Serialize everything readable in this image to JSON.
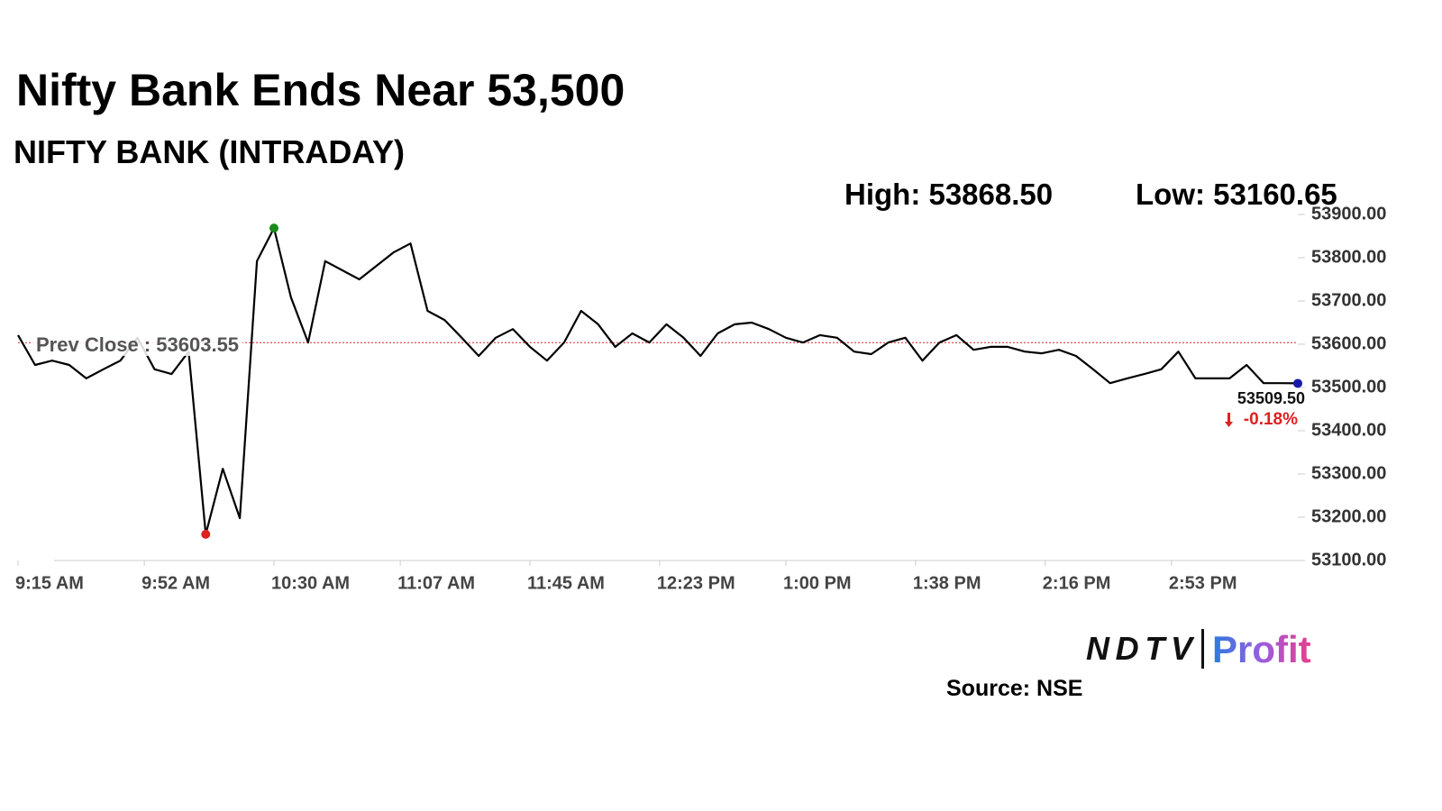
{
  "chart_data": {
    "type": "line",
    "title": "Nifty Bank Ends Near 53,500",
    "subtitle": "NIFTY BANK (INTRADAY)",
    "high": {
      "value": 53868.5,
      "label": "High: 53868.50",
      "color": "#1a8a1a"
    },
    "low": {
      "value": 53160.65,
      "label": "Low: 53160.65",
      "color": "#e02020"
    },
    "prev_close": {
      "value": 53603.55,
      "label": "Prev Close : 53603.55",
      "color": "#d62728"
    },
    "close": {
      "value": 53509.5,
      "label": "53509.50",
      "color": "#1a1aa8"
    },
    "change": {
      "value": -0.18,
      "label": "-0.18%",
      "color": "#e02020"
    },
    "color": "#000000",
    "x": [
      "9:15 AM",
      "9:20 AM",
      "9:25 AM",
      "9:30 AM",
      "9:35 AM",
      "9:40 AM",
      "9:45 AM",
      "9:50 AM",
      "9:55 AM",
      "10:00 AM",
      "10:05 AM",
      "10:10 AM",
      "10:15 AM",
      "10:20 AM",
      "10:25 AM",
      "10:30 AM",
      "10:35 AM",
      "10:40 AM",
      "10:45 AM",
      "10:50 AM",
      "10:55 AM",
      "11:00 AM",
      "11:05 AM",
      "11:10 AM",
      "11:15 AM",
      "11:20 AM",
      "11:25 AM",
      "11:30 AM",
      "11:35 AM",
      "11:40 AM",
      "11:45 AM",
      "11:50 AM",
      "11:55 AM",
      "12:00 PM",
      "12:05 PM",
      "12:10 PM",
      "12:15 PM",
      "12:20 PM",
      "12:25 PM",
      "12:30 PM",
      "12:35 PM",
      "12:40 PM",
      "12:45 PM",
      "12:50 PM",
      "12:55 PM",
      "1:00 PM",
      "1:05 PM",
      "1:10 PM",
      "1:15 PM",
      "1:20 PM",
      "1:25 PM",
      "1:30 PM",
      "1:35 PM",
      "1:40 PM",
      "1:45 PM",
      "1:50 PM",
      "1:55 PM",
      "2:00 PM",
      "2:05 PM",
      "2:10 PM",
      "2:15 PM",
      "2:20 PM",
      "2:25 PM",
      "2:30 PM",
      "2:35 PM",
      "2:40 PM",
      "2:45 PM",
      "2:50 PM",
      "2:55 PM",
      "3:00 PM",
      "3:05 PM",
      "3:10 PM",
      "3:15 PM",
      "3:20 PM",
      "3:25 PM",
      "3:30 PM"
    ],
    "values": [
      53621,
      53552,
      53562,
      53552,
      53521,
      53542,
      53562,
      53615,
      53542,
      53531,
      53583,
      53160.65,
      53312,
      53198,
      53792,
      53868.5,
      53708,
      53604,
      53792,
      53771,
      53750,
      53781,
      53812,
      53833,
      53677,
      53656,
      53615,
      53573,
      53615,
      53635,
      53594,
      53562,
      53604,
      53677,
      53646,
      53594,
      53625,
      53604,
      53646,
      53615,
      53573,
      53625,
      53646,
      53650,
      53635,
      53615,
      53604,
      53621,
      53615,
      53583,
      53577,
      53604,
      53615,
      53562,
      53604,
      53621,
      53587,
      53594,
      53594,
      53583,
      53579,
      53587,
      53573,
      53542,
      53510,
      53521,
      53531,
      53542,
      53583,
      53521,
      53521,
      53521,
      53552,
      53510,
      53510,
      53509.5
    ],
    "xticks": [
      "9:15 AM",
      "9:52 AM",
      "10:30 AM",
      "11:07 AM",
      "11:45 AM",
      "12:23 PM",
      "1:00 PM",
      "1:38 PM",
      "2:16 PM",
      "2:53 PM"
    ],
    "ylim": [
      53100,
      53900
    ],
    "yticks": [
      {
        "value": 53100,
        "label": "53100.00"
      },
      {
        "value": 53200,
        "label": "53200.00"
      },
      {
        "value": 53300,
        "label": "53300.00"
      },
      {
        "value": 53400,
        "label": "53400.00"
      },
      {
        "value": 53500,
        "label": "53500.00"
      },
      {
        "value": 53600,
        "label": "53600.00"
      },
      {
        "value": 53700,
        "label": "53700.00"
      },
      {
        "value": 53800,
        "label": "53800.00"
      },
      {
        "value": 53900,
        "label": "53900.00"
      }
    ],
    "brand": [
      "NDTV",
      "Profit"
    ],
    "source": "Source: NSE"
  }
}
